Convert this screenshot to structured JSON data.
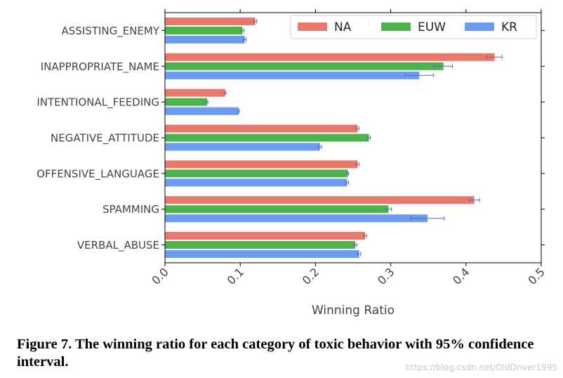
{
  "chart_data": {
    "type": "bar",
    "orientation": "horizontal",
    "categories": [
      "ASSISTING_ENEMY",
      "INAPPROPRIATE_NAME",
      "INTENTIONAL_FEEDING",
      "NEGATIVE_ATTITUDE",
      "OFFENSIVE_LANGUAGE",
      "SPAMMING",
      "VERBAL_ABUSE"
    ],
    "series": [
      {
        "name": "NA",
        "color": "#e8786a",
        "values": [
          0.12,
          0.438,
          0.08,
          0.256,
          0.256,
          0.411,
          0.266
        ],
        "error": [
          0.002,
          0.01,
          0.001,
          0.002,
          0.002,
          0.007,
          0.002
        ]
      },
      {
        "name": "EUW",
        "color": "#4db34d",
        "values": [
          0.103,
          0.37,
          0.056,
          0.271,
          0.243,
          0.297,
          0.253
        ],
        "error": [
          0.002,
          0.012,
          0.001,
          0.002,
          0.001,
          0.004,
          0.002
        ]
      },
      {
        "name": "KR",
        "color": "#6b9bf2",
        "values": [
          0.106,
          0.338,
          0.098,
          0.206,
          0.242,
          0.349,
          0.258
        ],
        "error": [
          0.002,
          0.019,
          0.001,
          0.002,
          0.002,
          0.022,
          0.002
        ]
      }
    ],
    "xlabel": "Winning Ratio",
    "ylabel": "",
    "xlim": [
      0.0,
      0.5
    ],
    "xticks": [
      "0.0",
      "0.1",
      "0.2",
      "0.3",
      "0.4",
      "0.5"
    ],
    "grid": false,
    "legend_position": "top-right"
  },
  "caption": "Figure 7.  The winning ratio for each category of toxic behavior with 95% confidence interval.",
  "watermark": "https://blog.csdn.net/OldDriver1995"
}
